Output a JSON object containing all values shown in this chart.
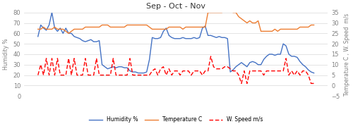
{
  "title": "Sep - Oct - Nov",
  "ylabel_left": "Humidity %",
  "ylabel_right": "Temperature C , W. Speed  m/s",
  "ylim_left": [
    0,
    80
  ],
  "ylim_right": [
    -5,
    35
  ],
  "yticks_left": [
    0,
    10,
    20,
    30,
    40,
    50,
    60,
    70,
    80
  ],
  "yticks_right": [
    -5,
    0,
    5,
    10,
    15,
    20,
    25,
    30,
    35
  ],
  "legend": [
    "Humidity %",
    "Temperature C",
    "W. Speed m/s"
  ],
  "humidity": [
    57,
    68,
    65,
    63,
    68,
    80,
    65,
    62,
    65,
    60,
    65,
    60,
    60,
    57,
    56,
    55,
    53,
    52,
    53,
    54,
    52,
    52,
    53,
    30,
    28,
    26,
    27,
    28,
    27,
    28,
    28,
    27,
    27,
    24,
    23,
    23,
    22,
    22,
    22,
    23,
    35,
    56,
    55,
    55,
    56,
    62,
    65,
    58,
    56,
    55,
    55,
    55,
    56,
    55,
    55,
    55,
    56,
    55,
    56,
    65,
    67,
    58,
    58,
    57,
    56,
    57,
    56,
    56,
    55,
    23,
    25,
    28,
    30,
    32,
    30,
    28,
    32,
    33,
    32,
    30,
    30,
    35,
    38,
    40,
    40,
    39,
    40,
    40,
    50,
    48,
    40,
    38,
    38,
    37,
    33,
    30,
    28,
    25,
    23,
    22
  ],
  "temperature": [
    27,
    27,
    28,
    27,
    27,
    27,
    28,
    27,
    27,
    27,
    26,
    25,
    26,
    27,
    27,
    27,
    27,
    28,
    28,
    28,
    28,
    28,
    28,
    29,
    29,
    29,
    28,
    28,
    28,
    28,
    28,
    28,
    29,
    29,
    29,
    29,
    29,
    29,
    29,
    29,
    28,
    27,
    27,
    27,
    27,
    27,
    27,
    28,
    28,
    28,
    28,
    28,
    27,
    28,
    28,
    28,
    28,
    28,
    28,
    28,
    28,
    35,
    35,
    35,
    35,
    35,
    35,
    36,
    36,
    36,
    35,
    35,
    33,
    32,
    31,
    30,
    31,
    30,
    30,
    31,
    26,
    26,
    26,
    26,
    26,
    27,
    26,
    27,
    27,
    27,
    27,
    27,
    27,
    27,
    28,
    28,
    28,
    28,
    29,
    29
  ],
  "wind_speed": [
    5,
    10,
    5,
    13,
    5,
    13,
    5,
    13,
    5,
    5,
    5,
    13,
    5,
    13,
    5,
    5,
    5,
    13,
    5,
    5,
    5,
    13,
    5,
    5,
    5,
    5,
    5,
    13,
    5,
    5,
    5,
    5,
    5,
    13,
    5,
    5,
    5,
    5,
    5,
    5,
    5,
    7,
    8,
    5,
    8,
    9,
    5,
    8,
    5,
    7,
    7,
    5,
    7,
    7,
    7,
    5,
    7,
    7,
    7,
    5,
    7,
    7,
    14,
    9,
    8,
    8,
    8,
    9,
    9,
    8,
    7,
    7,
    5,
    1,
    7,
    1,
    7,
    7,
    7,
    7,
    7,
    5,
    7,
    7,
    7,
    7,
    7,
    7,
    7,
    13,
    5,
    7,
    5,
    7,
    5,
    7,
    7,
    5,
    1,
    1
  ],
  "colors": {
    "humidity": "#4472C4",
    "temperature": "#ED7D31",
    "wind_speed": "#FF0000",
    "background": "#FFFFFF",
    "grid": "#D9D9D9"
  }
}
